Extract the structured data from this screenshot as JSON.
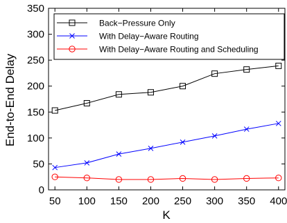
{
  "chart_data": {
    "type": "line",
    "title": "",
    "xlabel": "K",
    "ylabel": "End-to-End Delay",
    "x": [
      50,
      100,
      150,
      200,
      250,
      300,
      350,
      400
    ],
    "xlim": [
      40,
      410
    ],
    "ylim": [
      0,
      350
    ],
    "xticks": [
      "50",
      "100",
      "150",
      "200",
      "250",
      "300",
      "350",
      "400"
    ],
    "yticks": [
      "0",
      "50",
      "100",
      "150",
      "200",
      "250",
      "300",
      "350"
    ],
    "grid": false,
    "legend_position": "top-right",
    "series": [
      {
        "name": "Back−Pressure Only",
        "color": "#000000",
        "marker": "square",
        "values": [
          153,
          167,
          184,
          188,
          200,
          224,
          232,
          239
        ]
      },
      {
        "name": "With Delay−Aware Routing",
        "color": "#0000ff",
        "marker": "x",
        "values": [
          43,
          52,
          69,
          80,
          92,
          104,
          117,
          128
        ]
      },
      {
        "name": "With Delay−Aware Routing and Scheduling",
        "color": "#ff0000",
        "marker": "circle",
        "values": [
          25,
          23,
          20,
          20,
          22,
          20,
          22,
          23
        ]
      }
    ]
  }
}
